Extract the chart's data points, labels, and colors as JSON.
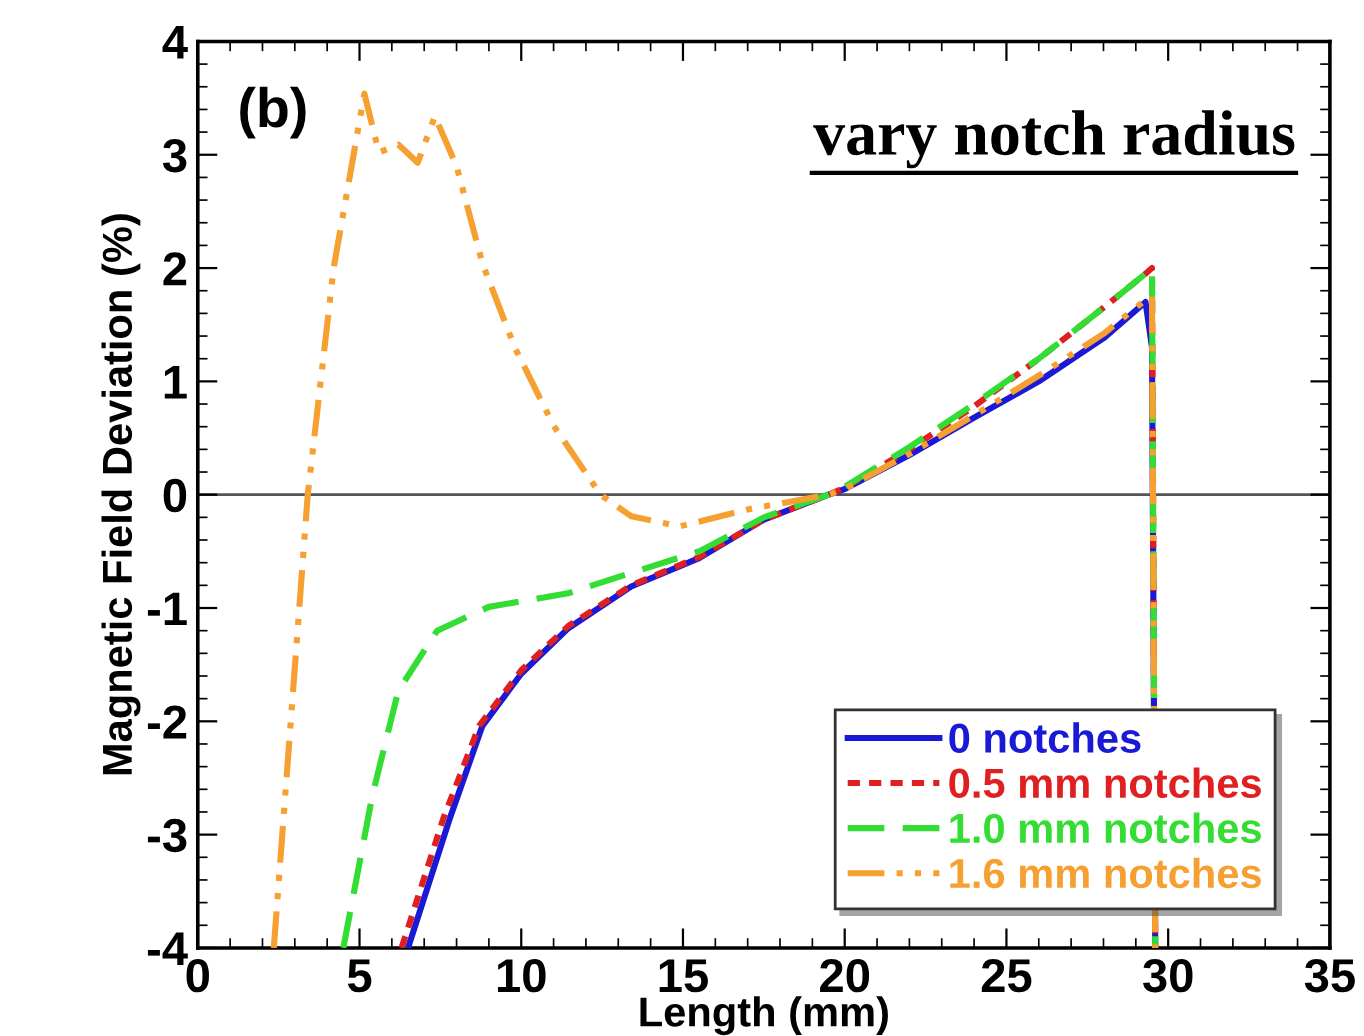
{
  "chart_data": {
    "type": "line",
    "xlabel": "Length (mm)",
    "ylabel": "Magnetic Field Deviation (%)",
    "xlim": [
      0,
      35
    ],
    "xticks": [
      0,
      5,
      10,
      15,
      20,
      25,
      30,
      35
    ],
    "ylim": [
      -4,
      4
    ],
    "yticks": [
      -4,
      -3,
      -2,
      -1,
      0,
      1,
      2,
      3,
      4
    ],
    "grid": false,
    "legend": "bottom right",
    "marker": "none",
    "annotations": [
      "(b)",
      "vary notch radius"
    ],
    "ref_lines": [
      {
        "axis": "y",
        "value": 0,
        "color": "#555555",
        "line_style": "solid"
      }
    ],
    "series": [
      {
        "name": "0 notches",
        "color": "#1a1ad6",
        "line_style": "solid",
        "x": [
          6.5,
          7.8,
          8.8,
          10.0,
          11.45,
          13.4,
          15.5,
          17.5,
          19.5,
          20,
          22,
          24,
          26,
          28,
          29.3,
          29.5,
          29.6
        ],
        "values": [
          -4,
          -2.85,
          -2.04,
          -1.58,
          -1.18,
          -0.81,
          -0.56,
          -0.22,
          0,
          0.05,
          0.35,
          0.68,
          1.0,
          1.38,
          1.7,
          1.3,
          -4
        ]
      },
      {
        "name": "0.5 mm notches",
        "color": "#e02020",
        "line_style": "dotted",
        "x": [
          6.3,
          7.6,
          8.7,
          10.0,
          11.45,
          13.4,
          15.5,
          17.5,
          19.5,
          20,
          22,
          24,
          26,
          28,
          29.3,
          29.5,
          29.6
        ],
        "values": [
          -4,
          -2.85,
          -2.04,
          -1.55,
          -1.16,
          -0.8,
          -0.55,
          -0.22,
          0,
          0.06,
          0.4,
          0.78,
          1.2,
          1.65,
          1.95,
          2.0,
          -4
        ]
      },
      {
        "name": "1.0 mm notches",
        "color": "#33dd33",
        "line_style": "dashed",
        "x": [
          4.5,
          5.4,
          6.2,
          7.4,
          9.0,
          11.45,
          13.4,
          15.5,
          17.5,
          19.5,
          20,
          22,
          24,
          26,
          28,
          29.3,
          29.5,
          29.6
        ],
        "values": [
          -4,
          -2.65,
          -1.73,
          -1.2,
          -0.99,
          -0.87,
          -0.69,
          -0.5,
          -0.2,
          0,
          0.07,
          0.42,
          0.8,
          1.2,
          1.65,
          1.95,
          2.0,
          -4
        ]
      },
      {
        "name": "1.6 mm notches",
        "color": "#f5a030",
        "line_style": "dashdot",
        "x": [
          2.35,
          3.4,
          4.2,
          5.15,
          5.6,
          6.2,
          6.8,
          7.33,
          8.0,
          8.8,
          9.8,
          11.0,
          12.45,
          13.4,
          14.9,
          17.0,
          19.5,
          20,
          22,
          24,
          26,
          28,
          29.3,
          29.5,
          29.6
        ],
        "values": [
          -4,
          0,
          2.0,
          3.54,
          3.02,
          3.09,
          2.93,
          3.34,
          2.9,
          2.04,
          1.3,
          0.61,
          0,
          -0.19,
          -0.28,
          -0.13,
          0,
          0.05,
          0.36,
          0.7,
          1.05,
          1.42,
          1.72,
          1.75,
          -4
        ]
      }
    ]
  }
}
